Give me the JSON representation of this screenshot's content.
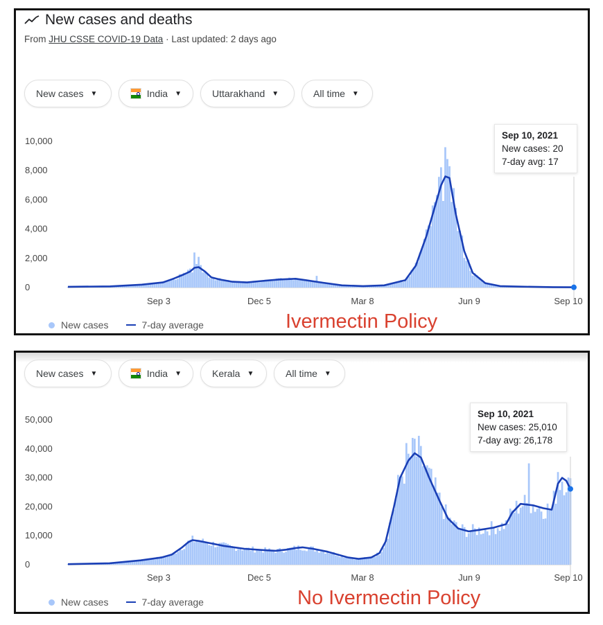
{
  "panel1": {
    "title": "New cases and deaths",
    "source_prefix": "From",
    "source_link": "JHU CSSE COVID-19 Data",
    "source_suffix": "· Last updated: 2 days ago",
    "chips": {
      "metric": "New cases",
      "country": "India",
      "region": "Uttarakhand",
      "range": "All time"
    },
    "tooltip": {
      "date": "Sep 10, 2021",
      "cases": "New cases: 20",
      "avg": "7-day avg: 17"
    },
    "legend": {
      "bars": "New cases",
      "line": "7-day average"
    },
    "annotation": "Ivermectin Policy"
  },
  "panel2": {
    "chips": {
      "metric": "New cases",
      "country": "India",
      "region": "Kerala",
      "range": "All time"
    },
    "tooltip": {
      "date": "Sep 10, 2021",
      "cases": "New cases: 25,010",
      "avg": "7-day avg: 26,178"
    },
    "legend": {
      "bars": "New cases",
      "line": "7-day average"
    },
    "annotation": "No Ivermectin Policy"
  },
  "colors": {
    "bars": "#a8c7fa",
    "line": "#1a3fb5",
    "annotation": "#d9412f"
  },
  "icons": {
    "trend": "trend-line-icon",
    "caret": "caret-down-icon",
    "flag": "india-flag-icon"
  },
  "chart_data": [
    {
      "type": "bar",
      "region": "Uttarakhand",
      "title": "",
      "xlabel": "",
      "ylabel": "",
      "x_ticks": [
        "Sep 3",
        "Dec 5",
        "Mar 8",
        "Jun 9",
        "Sep 10"
      ],
      "y_ticks": [
        "0",
        "2,000",
        "4,000",
        "6,000",
        "8,000",
        "10,000"
      ],
      "ylim": [
        0,
        10000
      ],
      "grid": false,
      "legend_position": "bottom-left",
      "series": [
        {
          "name": "7-day average",
          "type": "line",
          "points": [
            [
              0,
              50
            ],
            [
              20,
              80
            ],
            [
              35,
              200
            ],
            [
              45,
              350
            ],
            [
              50,
              600
            ],
            [
              55,
              900
            ],
            [
              58,
              1100
            ],
            [
              60,
              1350
            ],
            [
              62,
              1400
            ],
            [
              65,
              1100
            ],
            [
              68,
              700
            ],
            [
              72,
              550
            ],
            [
              78,
              400
            ],
            [
              85,
              350
            ],
            [
              92,
              450
            ],
            [
              100,
              550
            ],
            [
              108,
              600
            ],
            [
              113,
              500
            ],
            [
              120,
              350
            ],
            [
              130,
              150
            ],
            [
              140,
              100
            ],
            [
              150,
              150
            ],
            [
              160,
              500
            ],
            [
              165,
              1500
            ],
            [
              170,
              3500
            ],
            [
              174,
              5500
            ],
            [
              177,
              7000
            ],
            [
              179,
              7600
            ],
            [
              181,
              7500
            ],
            [
              184,
              5000
            ],
            [
              188,
              2500
            ],
            [
              192,
              1000
            ],
            [
              198,
              300
            ],
            [
              205,
              100
            ],
            [
              215,
              60
            ],
            [
              230,
              30
            ],
            [
              240,
              17
            ]
          ]
        },
        {
          "name": "New cases",
          "type": "bar",
          "peaks": [
            [
              60,
              2400
            ],
            [
              62,
              2100
            ],
            [
              118,
              800
            ],
            [
              179,
              9600
            ],
            [
              181,
              8300
            ],
            [
              183,
              6800
            ],
            [
              240,
              20
            ]
          ]
        }
      ]
    },
    {
      "type": "bar",
      "region": "Kerala",
      "title": "",
      "xlabel": "",
      "ylabel": "",
      "x_ticks": [
        "Sep 3",
        "Dec 5",
        "Mar 8",
        "Jun 9",
        "Sep 10"
      ],
      "y_ticks": [
        "0",
        "10,000",
        "20,000",
        "30,000",
        "40,000",
        "50,000"
      ],
      "ylim": [
        0,
        50000
      ],
      "grid": false,
      "legend_position": "bottom-left",
      "series": [
        {
          "name": "7-day average",
          "type": "line",
          "points": [
            [
              0,
              200
            ],
            [
              20,
              500
            ],
            [
              35,
              1500
            ],
            [
              45,
              2500
            ],
            [
              50,
              3500
            ],
            [
              55,
              6000
            ],
            [
              58,
              7800
            ],
            [
              60,
              8500
            ],
            [
              63,
              8200
            ],
            [
              68,
              7500
            ],
            [
              75,
              6500
            ],
            [
              85,
              5500
            ],
            [
              95,
              5000
            ],
            [
              100,
              4800
            ],
            [
              105,
              5200
            ],
            [
              110,
              5800
            ],
            [
              113,
              6000
            ],
            [
              118,
              5500
            ],
            [
              125,
              4500
            ],
            [
              135,
              2500
            ],
            [
              140,
              2000
            ],
            [
              146,
              2500
            ],
            [
              150,
              4000
            ],
            [
              153,
              8000
            ],
            [
              157,
              20000
            ],
            [
              160,
              30000
            ],
            [
              164,
              36000
            ],
            [
              167,
              38500
            ],
            [
              170,
              37000
            ],
            [
              174,
              30000
            ],
            [
              179,
              22000
            ],
            [
              183,
              16000
            ],
            [
              188,
              12500
            ],
            [
              193,
              11500
            ],
            [
              198,
              12000
            ],
            [
              205,
              12800
            ],
            [
              211,
              14000
            ],
            [
              214,
              18000
            ],
            [
              218,
              21000
            ],
            [
              224,
              20500
            ],
            [
              229,
              19500
            ],
            [
              233,
              19000
            ],
            [
              236,
              28000
            ],
            [
              238,
              30000
            ],
            [
              240,
              29000
            ],
            [
              242,
              26178
            ]
          ]
        },
        {
          "name": "New cases",
          "type": "bar",
          "peaks": [
            [
              163,
              42000
            ],
            [
              167,
              43500
            ],
            [
              170,
              41000
            ],
            [
              222,
              35000
            ],
            [
              236,
              32000
            ],
            [
              240,
              25010
            ]
          ]
        }
      ]
    }
  ]
}
